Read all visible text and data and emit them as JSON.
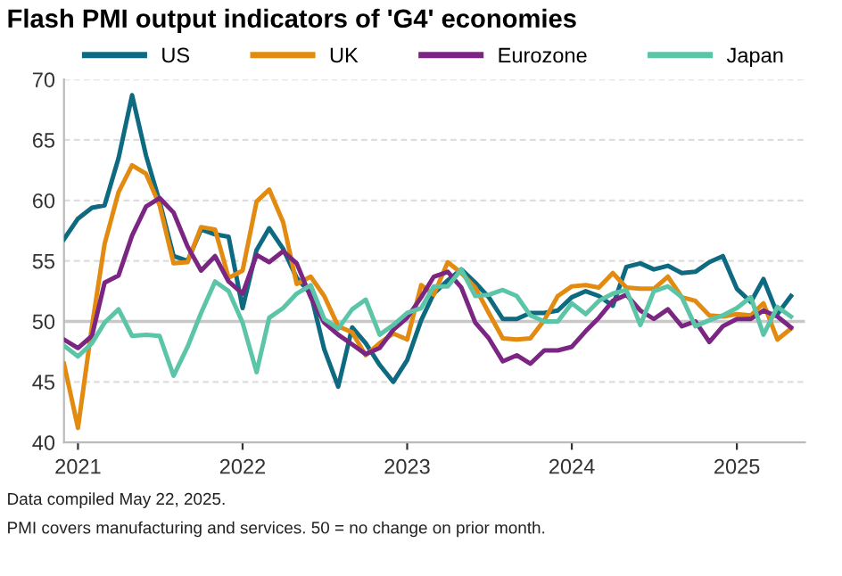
{
  "chart_data": {
    "type": "line",
    "title": "Flash PMI output indicators of 'G4' economies",
    "x": [
      "2020-12",
      "2021-01",
      "2021-02",
      "2021-03",
      "2021-04",
      "2021-05",
      "2021-06",
      "2021-07",
      "2021-08",
      "2021-09",
      "2021-10",
      "2021-11",
      "2021-12",
      "2022-01",
      "2022-02",
      "2022-03",
      "2022-04",
      "2022-05",
      "2022-06",
      "2022-07",
      "2022-08",
      "2022-09",
      "2022-10",
      "2022-11",
      "2022-12",
      "2023-01",
      "2023-02",
      "2023-03",
      "2023-04",
      "2023-05",
      "2023-06",
      "2023-07",
      "2023-08",
      "2023-09",
      "2023-10",
      "2023-11",
      "2023-12",
      "2024-01",
      "2024-02",
      "2024-03",
      "2024-04",
      "2024-05",
      "2024-06",
      "2024-07",
      "2024-08",
      "2024-09",
      "2024-10",
      "2024-11",
      "2024-12",
      "2025-01",
      "2025-02",
      "2025-03",
      "2025-04",
      "2025-05"
    ],
    "series": [
      {
        "name": "US",
        "color": "#0e6a80",
        "values": [
          56.8,
          58.5,
          59.4,
          59.6,
          63.5,
          68.7,
          63.7,
          59.9,
          55.4,
          55.0,
          57.6,
          57.2,
          57.0,
          51.1,
          55.9,
          57.7,
          56.0,
          53.6,
          52.3,
          47.7,
          44.6,
          49.5,
          48.2,
          46.4,
          45.0,
          46.8,
          50.1,
          52.3,
          53.4,
          54.3,
          53.2,
          52.0,
          50.2,
          50.2,
          50.7,
          50.7,
          50.9,
          52.0,
          52.5,
          52.1,
          51.3,
          54.5,
          54.8,
          54.3,
          54.6,
          54.0,
          54.1,
          54.9,
          55.4,
          52.7,
          51.6,
          53.5,
          50.6,
          52.1
        ]
      },
      {
        "name": "UK",
        "color": "#e38a10",
        "values": [
          46.5,
          41.2,
          49.6,
          56.4,
          60.7,
          62.9,
          62.2,
          59.6,
          54.8,
          54.9,
          57.8,
          57.6,
          53.6,
          54.2,
          59.9,
          60.9,
          58.2,
          53.1,
          53.7,
          52.1,
          49.6,
          49.1,
          47.2,
          48.2,
          49.0,
          48.5,
          53.0,
          52.2,
          54.9,
          54.0,
          52.8,
          50.7,
          48.6,
          48.5,
          48.6,
          50.1,
          52.1,
          52.9,
          53.0,
          52.8,
          54.0,
          52.8,
          52.7,
          52.7,
          53.7,
          52.0,
          51.7,
          50.5,
          50.4,
          50.6,
          50.5,
          51.5,
          48.5,
          49.4
        ]
      },
      {
        "name": "Eurozone",
        "color": "#7a2682",
        "values": [
          48.5,
          47.8,
          48.8,
          53.2,
          53.8,
          57.1,
          59.5,
          60.2,
          59.0,
          56.2,
          54.2,
          55.4,
          53.3,
          52.3,
          55.5,
          54.9,
          55.8,
          54.8,
          52.0,
          49.9,
          48.9,
          48.1,
          47.3,
          47.8,
          49.3,
          50.3,
          52.0,
          53.7,
          54.1,
          52.8,
          49.9,
          48.6,
          46.7,
          47.2,
          46.5,
          47.6,
          47.6,
          47.9,
          49.2,
          50.3,
          51.7,
          52.2,
          50.9,
          50.2,
          51.0,
          49.6,
          50.0,
          48.3,
          49.6,
          50.2,
          50.2,
          50.9,
          50.4,
          49.5
        ]
      },
      {
        "name": "Japan",
        "color": "#5cc5a8",
        "values": [
          48.0,
          47.1,
          48.2,
          49.9,
          51.0,
          48.8,
          48.9,
          48.8,
          45.5,
          47.9,
          50.7,
          53.3,
          52.5,
          49.9,
          45.8,
          50.3,
          51.1,
          52.3,
          53.0,
          50.2,
          49.4,
          51.0,
          51.8,
          48.9,
          49.7,
          50.7,
          51.1,
          52.9,
          52.9,
          54.3,
          52.1,
          52.2,
          52.6,
          52.1,
          50.5,
          50.0,
          50.0,
          51.5,
          50.6,
          51.7,
          52.3,
          52.6,
          49.7,
          52.5,
          52.9,
          52.0,
          49.6,
          50.1,
          50.5,
          51.1,
          52.0,
          48.9,
          51.2,
          50.4
        ]
      }
    ],
    "xlim": [
      "2020-12",
      "2025-06"
    ],
    "xticks": [
      {
        "value": "2021-01",
        "label": "2021"
      },
      {
        "value": "2022-01",
        "label": "2022"
      },
      {
        "value": "2023-01",
        "label": "2023"
      },
      {
        "value": "2024-01",
        "label": "2024"
      },
      {
        "value": "2025-01",
        "label": "2025"
      }
    ],
    "ylim": [
      40,
      70
    ],
    "yticks": [
      40,
      45,
      50,
      55,
      60,
      65,
      70
    ],
    "ref_lines": [
      {
        "axis": "y",
        "value": 50,
        "color": "#c8c8c8"
      }
    ],
    "grid": "y",
    "legend": "top",
    "line_style": "solid",
    "marker": "none",
    "annotations": [
      "Data compiled May 22, 2025.",
      "PMI covers manufacturing and services. 50 = no change on prior month."
    ]
  }
}
